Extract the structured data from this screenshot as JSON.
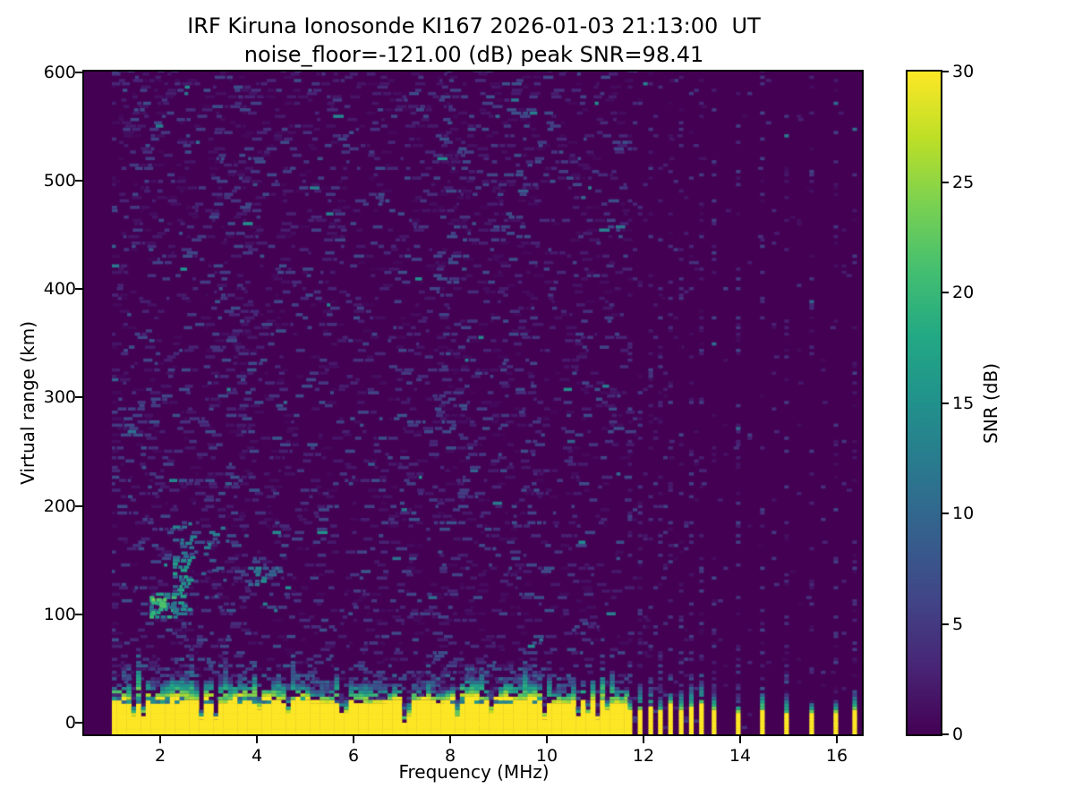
{
  "title": {
    "line1": "IRF Kiruna Ionosonde KI167 2026-01-03 21:13:00  UT",
    "line2": "noise_floor=-121.00 (dB) peak SNR=98.41"
  },
  "axes": {
    "xlabel": "Frequency (MHz)",
    "ylabel": "Virtual range (km)",
    "x_ticks": [
      2,
      4,
      6,
      8,
      10,
      12,
      14,
      16
    ],
    "y_ticks": [
      0,
      100,
      200,
      300,
      400,
      500,
      600
    ]
  },
  "colorbar": {
    "label": "SNR (dB)",
    "ticks": [
      0,
      5,
      10,
      15,
      20,
      25,
      30
    ],
    "min": 0,
    "max": 30,
    "colormap": "viridis"
  },
  "chart_data": {
    "type": "heatmap",
    "title": "IRF Kiruna Ionosonde KI167 2026-01-03 21:13:00 UT",
    "subtitle": "noise_floor=-121.00 (dB) peak SNR=98.41",
    "station": "KI167",
    "timestamp_ut": "2026-01-03 21:13:00",
    "noise_floor_db": -121.0,
    "peak_snr_db": 98.41,
    "xlabel": "Frequency (MHz)",
    "ylabel": "Virtual range (km)",
    "value_label": "SNR (dB)",
    "x_range_mhz": [
      0.43,
      16.52
    ],
    "y_range_km": [
      -11,
      601
    ],
    "value_range": [
      0,
      30
    ],
    "colormap": "viridis",
    "sweep_mhz": [
      1.0,
      16.4
    ],
    "features": {
      "ground_clutter_band": {
        "freq_range_mhz": [
          1.0,
          11.65
        ],
        "top_km_mean": 24,
        "fringe_top_km": 45,
        "snr_db": 30,
        "note": "saturated near-range return with ragged green fringe, sparse notch dropouts and a weak internal lacuna near 20 km"
      },
      "comb_dense_mhz": [
        11.72,
        11.93,
        12.15,
        12.35,
        12.56,
        12.78,
        12.99,
        13.2
      ],
      "comb_sparse_mhz": [
        13.46,
        13.96,
        14.46,
        14.96,
        15.48,
        15.98,
        16.37
      ],
      "echo_trace": {
        "freq_range_mhz": [
          1.8,
          2.6
        ],
        "range_km": [
          96,
          184
        ],
        "peak_snr_db": 22,
        "note": "E-region echo hook near 2 MHz / 110 km with weaker scatter up to 3.6 MHz and a faint patch near 4 MHz / 135 km"
      },
      "background_noise": {
        "typical_snr_db": [
          0,
          6
        ],
        "pattern": "horizontal speckle dashes; column-structured interference above 11.6 MHz"
      }
    }
  }
}
